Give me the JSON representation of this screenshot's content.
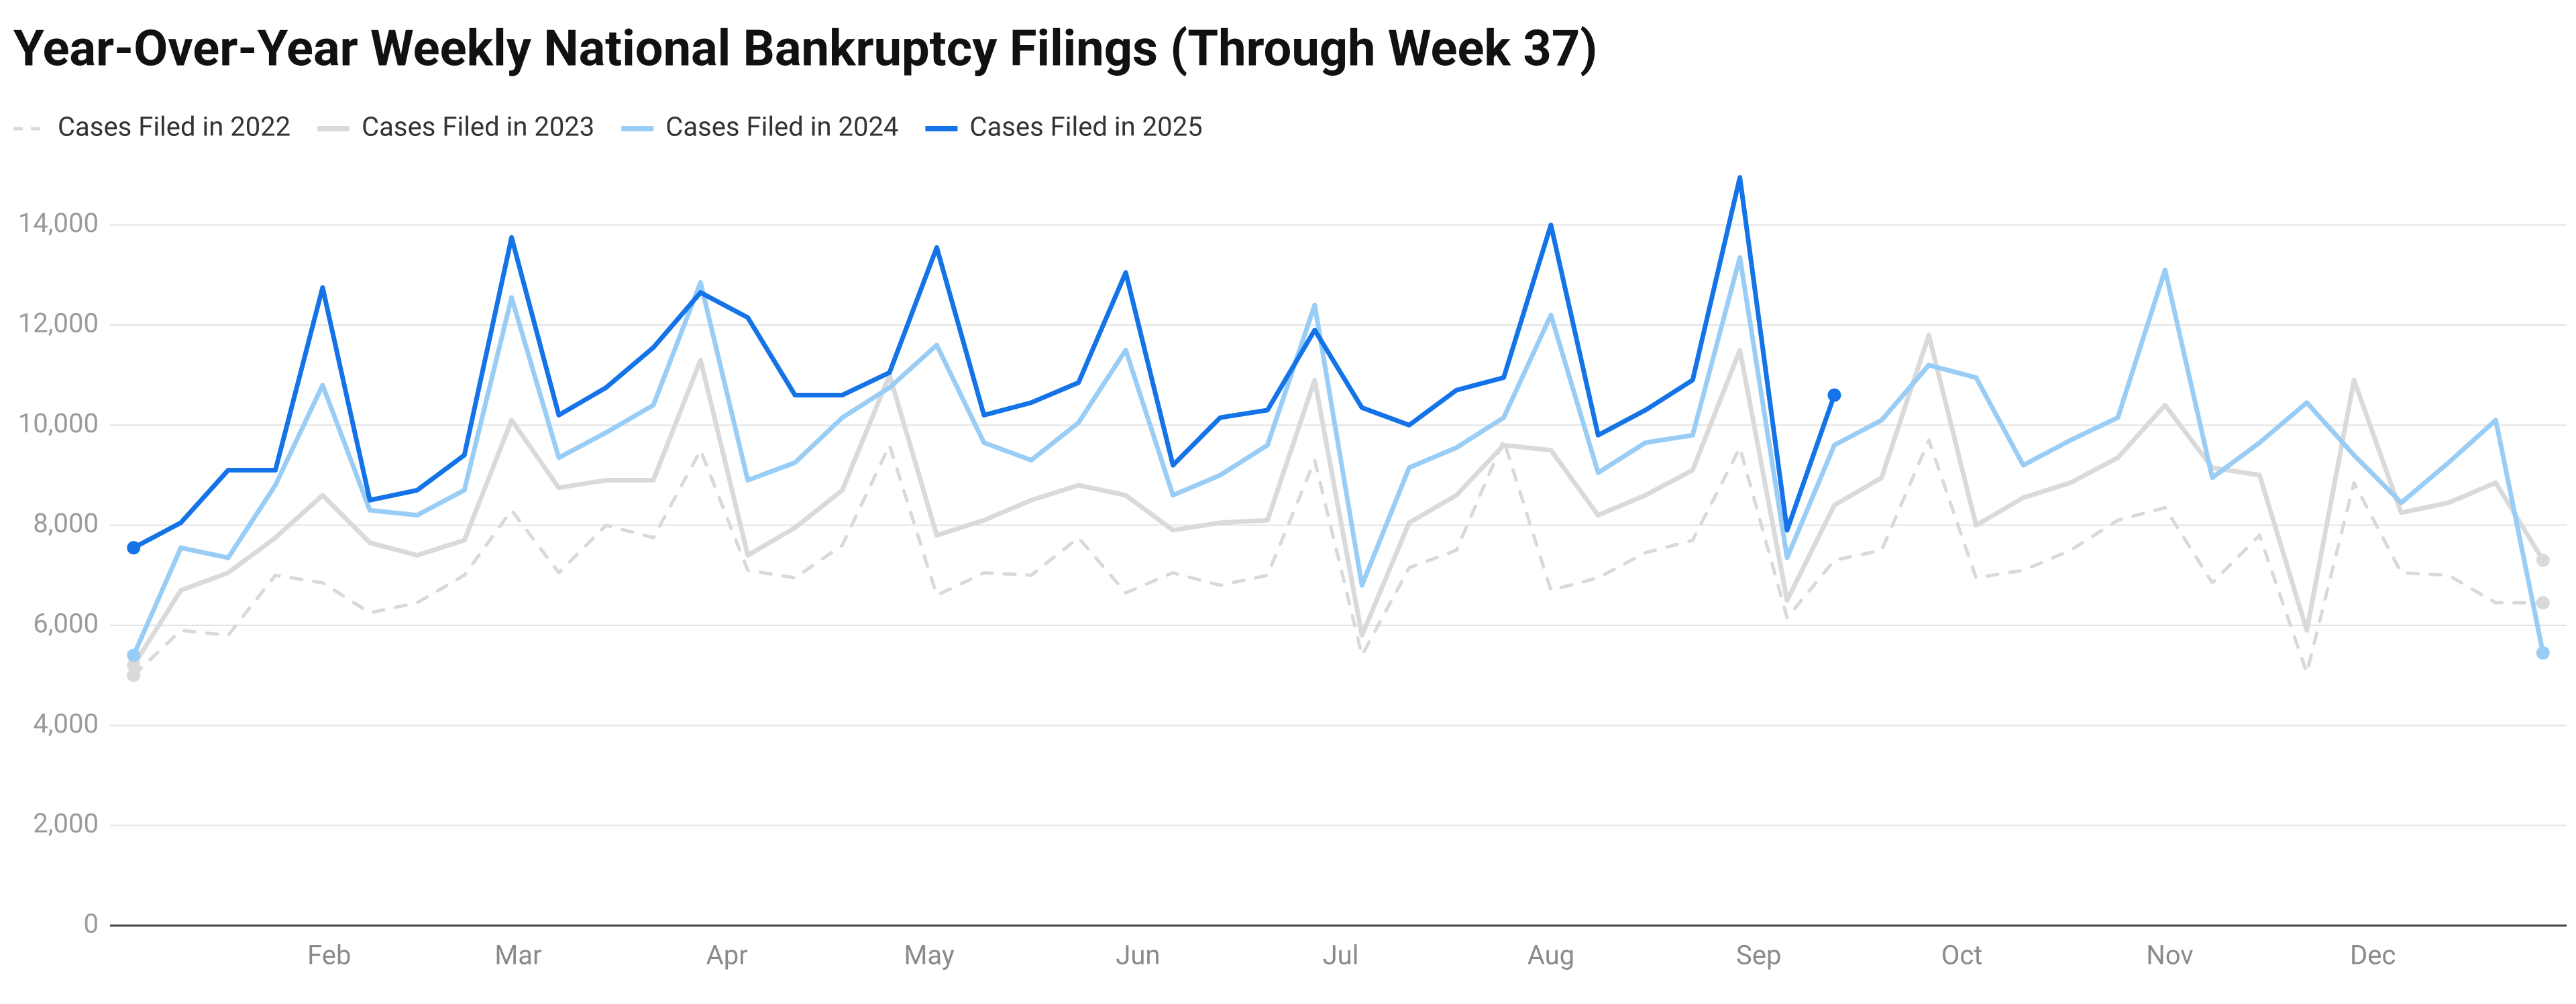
{
  "chart_data": {
    "type": "line",
    "title": "Year-Over-Year Weekly National Bankruptcy Filings (Through Week 37)",
    "x": [
      1,
      2,
      3,
      4,
      5,
      6,
      7,
      8,
      9,
      10,
      11,
      12,
      13,
      14,
      15,
      16,
      17,
      18,
      19,
      20,
      21,
      22,
      23,
      24,
      25,
      26,
      27,
      28,
      29,
      30,
      31,
      32,
      33,
      34,
      35,
      36,
      37,
      38,
      39,
      40,
      41,
      42,
      43,
      44,
      45,
      46,
      47,
      48,
      49,
      50,
      51,
      52
    ],
    "xlim": [
      0.5,
      52.5
    ],
    "xticks": [
      {
        "value": 5.14,
        "label": "Feb"
      },
      {
        "value": 9.14,
        "label": "Mar"
      },
      {
        "value": 13.56,
        "label": "Apr"
      },
      {
        "value": 17.84,
        "label": "May"
      },
      {
        "value": 22.26,
        "label": "Jun"
      },
      {
        "value": 26.55,
        "label": "Jul"
      },
      {
        "value": 31,
        "label": "Aug"
      },
      {
        "value": 35.4,
        "label": "Sep"
      },
      {
        "value": 39.7,
        "label": "Oct"
      },
      {
        "value": 44.1,
        "label": "Nov"
      },
      {
        "value": 48.4,
        "label": "Dec"
      }
    ],
    "ylim": [
      0,
      15000
    ],
    "yticks": [
      0,
      {
        "value": 2000,
        "label": "2,000"
      },
      {
        "value": 4000,
        "label": "4,000"
      },
      {
        "value": 6000,
        "label": "6,000"
      },
      {
        "value": 8000,
        "label": "8,000"
      },
      {
        "value": 10000,
        "label": "10,000"
      },
      {
        "value": 12000,
        "label": "12,000"
      },
      {
        "value": 14000,
        "label": "14,000"
      }
    ],
    "grid": true,
    "legend": "top-left",
    "series": [
      {
        "name": "Cases Filed in 2022",
        "color": "#d9d9d9",
        "dashed": true,
        "values": [
          5000,
          5900,
          5800,
          7000,
          6850,
          6250,
          6450,
          7000,
          8300,
          7050,
          8000,
          7750,
          9500,
          7100,
          6950,
          7600,
          9600,
          6600,
          7050,
          7000,
          7750,
          6650,
          7050,
          6800,
          7000,
          9300,
          5400,
          7150,
          7500,
          9700,
          6700,
          6950,
          7450,
          7700,
          9550,
          6150,
          7300,
          7500,
          9700,
          6950,
          7100,
          7500,
          8100,
          8350,
          6850,
          7800,
          5050,
          8850,
          7050,
          7000,
          6450,
          6450
        ]
      },
      {
        "name": "Cases Filed in 2023",
        "color": "#dadada",
        "values": [
          5200,
          6700,
          7050,
          7750,
          8600,
          7650,
          7400,
          7700,
          10100,
          8750,
          8900,
          8900,
          11300,
          7400,
          7950,
          8700,
          11000,
          7800,
          8100,
          8500,
          8800,
          8600,
          7900,
          8050,
          8100,
          10900,
          5800,
          8050,
          8600,
          9600,
          9500,
          8200,
          8600,
          9100,
          11500,
          6500,
          8400,
          8950,
          11800,
          8000,
          8550,
          8850,
          9350,
          10400,
          9150,
          9000,
          5900,
          10900,
          8250,
          8450,
          8850,
          7300
        ]
      },
      {
        "name": "Cases Filed in 2024",
        "color": "#99cdf5",
        "values": [
          5400,
          7550,
          7350,
          8800,
          10800,
          8300,
          8200,
          8700,
          12550,
          9350,
          9850,
          10400,
          12850,
          8900,
          9250,
          10150,
          10750,
          11600,
          9650,
          9300,
          10050,
          11500,
          8600,
          9000,
          9600,
          12400,
          6800,
          9150,
          9550,
          10150,
          12200,
          9050,
          9650,
          9800,
          13350,
          7350,
          9600,
          10100,
          11200,
          10950,
          9200,
          9700,
          10150,
          13100,
          8950,
          9650,
          10450,
          9400,
          8450,
          9250,
          10100,
          5450
        ]
      },
      {
        "name": "Cases Filed in 2025",
        "color": "#1473e6",
        "values": [
          7550,
          8050,
          9100,
          9100,
          12750,
          8500,
          8700,
          9400,
          13750,
          10200,
          10750,
          11550,
          12650,
          12150,
          10600,
          10600,
          11050,
          13550,
          10200,
          10450,
          10850,
          13050,
          9200,
          10150,
          10300,
          11900,
          10350,
          10000,
          10700,
          10950,
          14000,
          9800,
          10300,
          10900,
          14950,
          7900,
          10600,
          null,
          null,
          null,
          null,
          null,
          null,
          null,
          null,
          null,
          null,
          null,
          null,
          null,
          null,
          null
        ]
      }
    ]
  }
}
